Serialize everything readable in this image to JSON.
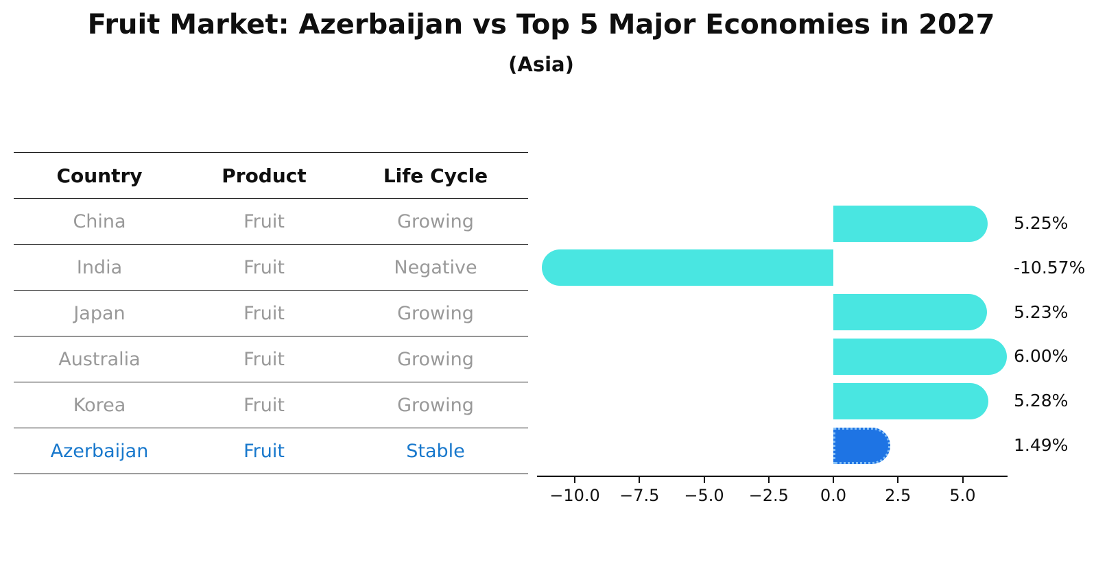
{
  "title": "Fruit Market: Azerbaijan vs Top 5 Major Economies in 2027",
  "subtitle": "(Asia)",
  "colors": {
    "background": "#ffffff",
    "bar_default": "#49e6e1",
    "bar_highlight_fill": "#1e74e4",
    "bar_highlight_border": "#85c0f7",
    "highlight_text": "#1878cc",
    "table_text": "#999999",
    "heading_text": "#0f0f0f",
    "axis": "#111111"
  },
  "table": {
    "headers": [
      "Country",
      "Product",
      "Life Cycle"
    ]
  },
  "chart_data": {
    "type": "bar",
    "orientation": "horizontal",
    "title": "Fruit Market: Azerbaijan vs Top 5 Major Economies in 2027",
    "subtitle": "(Asia)",
    "categories": [
      "China",
      "India",
      "Japan",
      "Australia",
      "Korea",
      "Azerbaijan"
    ],
    "values": [
      5.25,
      -10.57,
      5.23,
      6.0,
      5.28,
      1.49
    ],
    "value_labels": [
      "5.25%",
      "-10.57%",
      "5.23%",
      "6.00%",
      "5.28%",
      "1.49%"
    ],
    "rows": [
      {
        "country": "China",
        "product": "Fruit",
        "life_cycle": "Growing",
        "value": 5.25,
        "label": "5.25%",
        "highlight": false
      },
      {
        "country": "India",
        "product": "Fruit",
        "life_cycle": "Negative",
        "value": -10.57,
        "label": "-10.57%",
        "highlight": false
      },
      {
        "country": "Japan",
        "product": "Fruit",
        "life_cycle": "Growing",
        "value": 5.23,
        "label": "5.23%",
        "highlight": false
      },
      {
        "country": "Australia",
        "product": "Fruit",
        "life_cycle": "Growing",
        "value": 6.0,
        "label": "6.00%",
        "highlight": false
      },
      {
        "country": "Korea",
        "product": "Fruit",
        "life_cycle": "Growing",
        "value": 5.28,
        "label": "5.28%",
        "highlight": false
      },
      {
        "country": "Azerbaijan",
        "product": "Fruit",
        "life_cycle": "Stable",
        "value": 1.49,
        "label": "1.49%",
        "highlight": true
      }
    ],
    "xlim": [
      -11.45,
      6.7
    ],
    "x_ticks": [
      -10.0,
      -7.5,
      -5.0,
      -2.5,
      0.0,
      2.5,
      5.0
    ],
    "x_tick_labels": [
      "−10.0",
      "−7.5",
      "−5.0",
      "−2.5",
      "0.0",
      "2.5",
      "5.0"
    ],
    "grid": false,
    "legend": null
  }
}
